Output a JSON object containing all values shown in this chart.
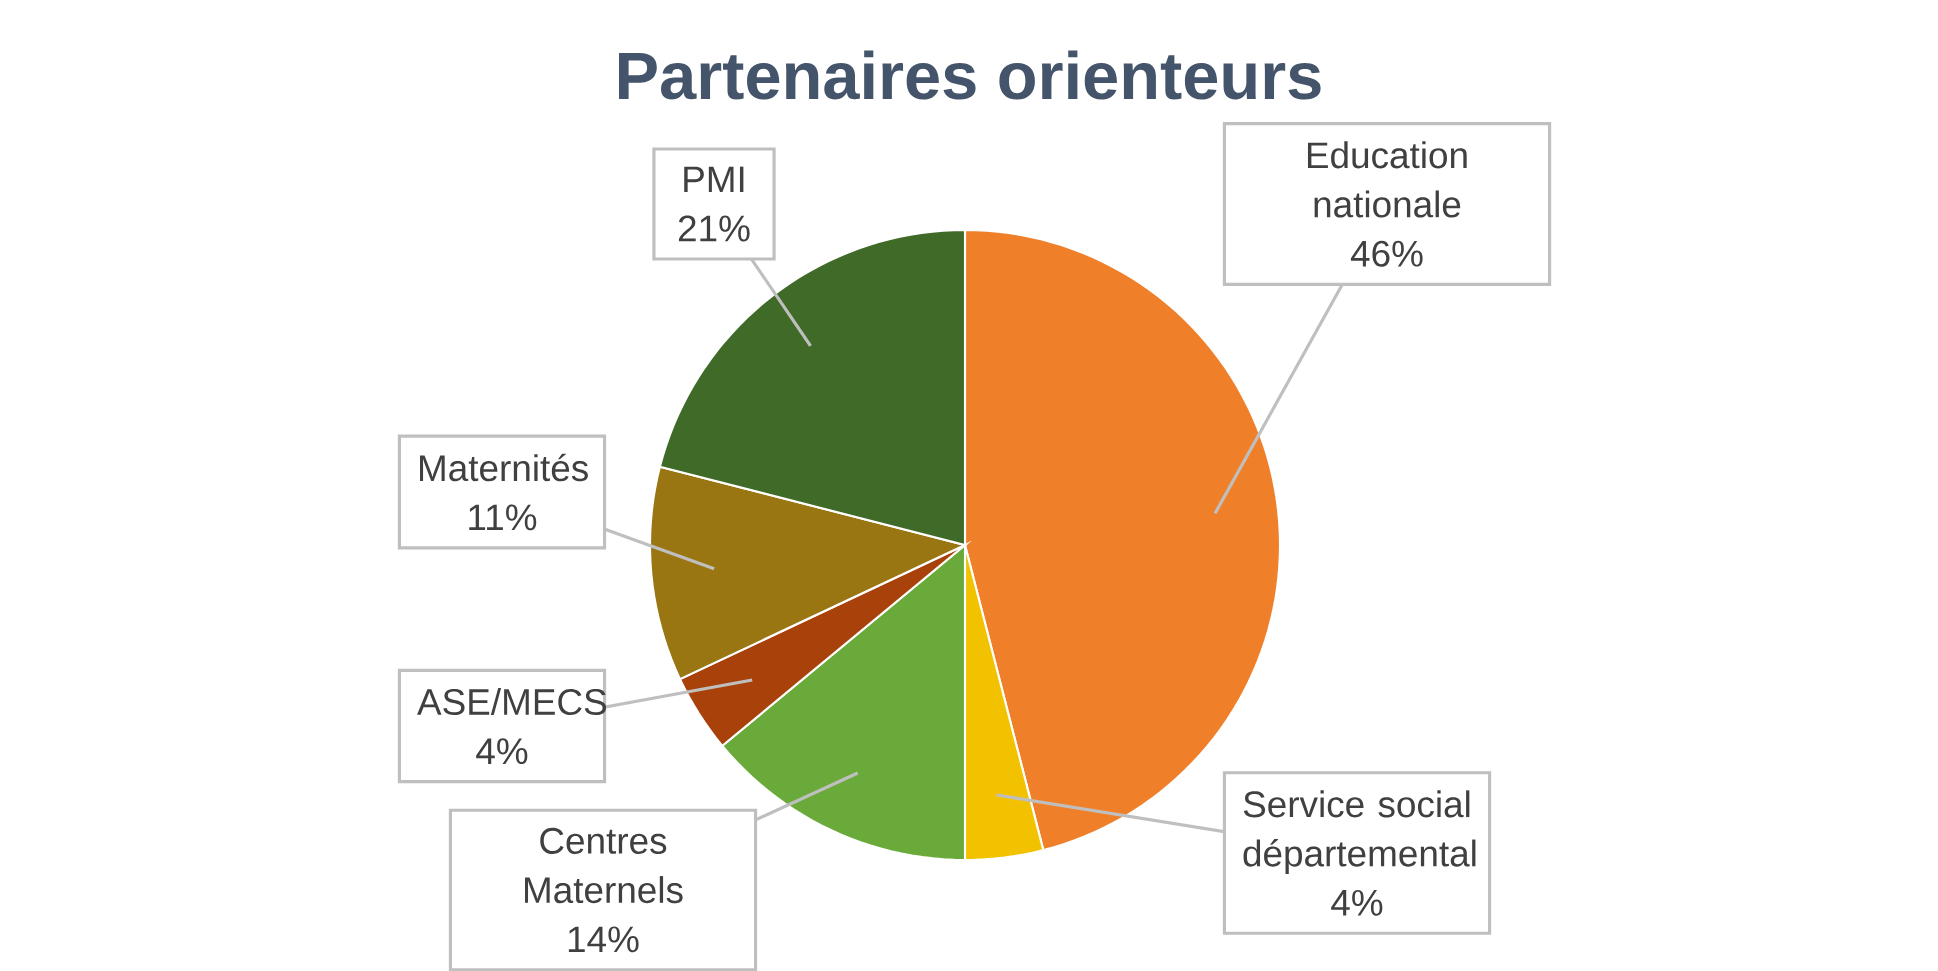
{
  "chart_data": {
    "type": "pie",
    "title": "Partenaires orienteurs",
    "categories": [
      "Education nationale",
      "Service social départemental",
      "Centres Maternels",
      "ASE/MECS",
      "Maternités",
      "PMI"
    ],
    "values": [
      46,
      4,
      14,
      4,
      11,
      21
    ],
    "value_labels": [
      "46%",
      "4%",
      "14%",
      "4%",
      "11%",
      "21%"
    ],
    "colors": [
      "#f07f2a",
      "#f2c200",
      "#6aaa3a",
      "#a8420a",
      "#9a7612",
      "#406a28"
    ]
  }
}
